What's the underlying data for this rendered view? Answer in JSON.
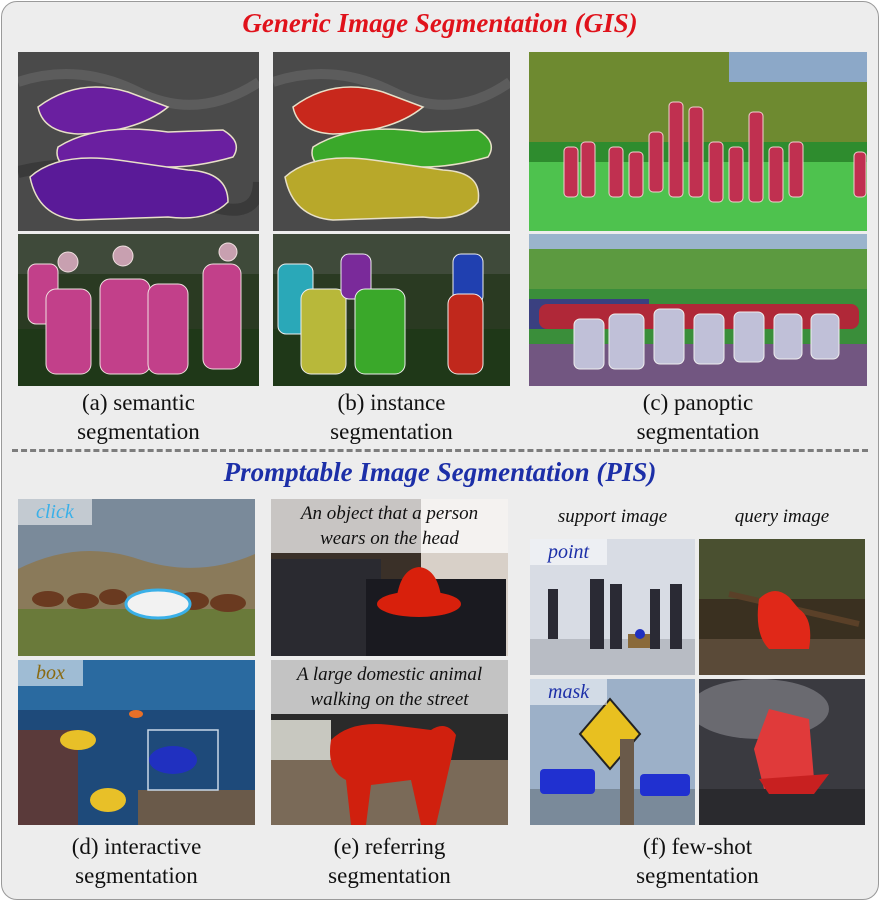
{
  "gis_title": "Generic Image Segmentation (GIS)",
  "pis_title": "Promptable Image Segmentation (PIS)",
  "colors": {
    "gis_title": "#e0121b",
    "pis_title": "#1c2fa8",
    "divider": "#7d7d7d"
  },
  "captions": {
    "a_line1": "(a) semantic",
    "a_line2": "segmentation",
    "b_line1": "(b) instance",
    "b_line2": "segmentation",
    "c_line1": "(c) panoptic",
    "c_line2": "segmentation",
    "d_line1": "(d) interactive",
    "d_line2": "segmentation",
    "e_line1": "(e) referring",
    "e_line2": "segmentation",
    "f_line1": "(f) few-shot",
    "f_line2": "segmentation"
  },
  "prompts": {
    "click": "click",
    "box": "box",
    "point": "point",
    "mask": "mask",
    "ref1_line1": "An object that a person",
    "ref1_line2": "wears on the head",
    "ref2_line1": "A large domestic animal",
    "ref2_line2": "walking on the street"
  },
  "fewshot_headers": {
    "support": "support image",
    "query": "query image"
  }
}
